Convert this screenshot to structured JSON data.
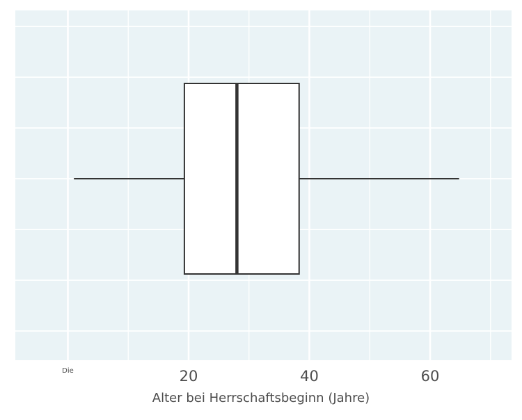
{
  "chart_data": {
    "type": "boxplot",
    "title": "",
    "xlabel": "Alter bei Herrschaftsbeginn (Jahre)",
    "ylabel": "",
    "xlim": [
      0,
      72
    ],
    "x_ticks": [
      {
        "value": 0,
        "label": "Die"
      },
      {
        "value": 20,
        "label": "20"
      },
      {
        "value": 40,
        "label": "40"
      },
      {
        "value": 60,
        "label": "60"
      }
    ],
    "x_minor_ticks": [
      10,
      30,
      50,
      70
    ],
    "box": {
      "whisker_low": 1,
      "q1": 19.3,
      "median": 28,
      "q3": 38.3,
      "whisker_high": 64.8
    },
    "grid": true,
    "legend": "none",
    "colors": {
      "panel_background": "#EAF3F6",
      "grid": "#FFFFFF",
      "box_fill": "#FFFFFF",
      "box_stroke": "#333333",
      "axis_text": "#4D4D4D"
    }
  }
}
